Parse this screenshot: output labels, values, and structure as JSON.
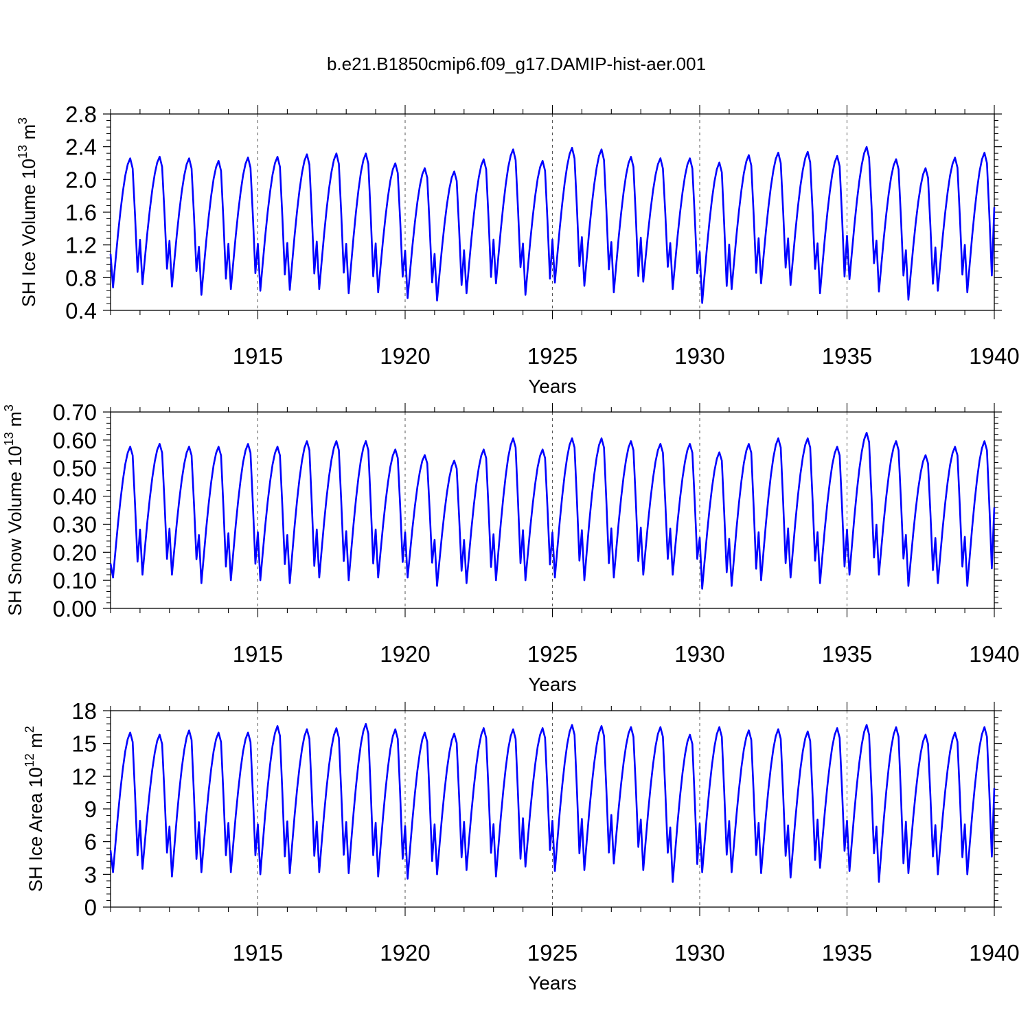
{
  "title": "b.e21.B1850cmip6.f09_g17.DAMIP-hist-aer.001",
  "colors": {
    "line": "#0000ff",
    "axis": "#000000",
    "grid": "#555555"
  },
  "chart_data": [
    {
      "type": "line",
      "panel": "top",
      "title": "b.e21.B1850cmip6.f09_g17.DAMIP-hist-aer.001",
      "xlabel": "Years",
      "ylabel": "SH Ice Volume 10",
      "ylabel_sup1": "13",
      "ylabel_mid": " m",
      "ylabel_sup2": "3",
      "xlim": [
        1910,
        1940
      ],
      "ylim": [
        0.4,
        2.8
      ],
      "yticks": [
        0.4,
        0.8,
        1.2,
        1.6,
        2.0,
        2.4,
        2.8
      ],
      "ytick_labels": [
        "0.4",
        "0.8",
        "1.2",
        "1.6",
        "2.0",
        "2.4",
        "2.8"
      ],
      "xticks": [
        1915,
        1920,
        1925,
        1930,
        1935,
        1940
      ],
      "xtick_labels": [
        "1915",
        "1920",
        "1925",
        "1930",
        "1935",
        "1940"
      ],
      "vgrid_years": [
        1915,
        1920,
        1925,
        1930,
        1935
      ],
      "series_start_year": 1910.0,
      "maxima": [
        2.27,
        2.29,
        2.27,
        2.24,
        2.28,
        2.29,
        2.32,
        2.33,
        2.33,
        2.21,
        2.15,
        2.11,
        2.26,
        2.38,
        2.24,
        2.4,
        2.38,
        2.29,
        2.27,
        2.27,
        2.22,
        2.31,
        2.34,
        2.35,
        2.3,
        2.41,
        2.26,
        2.15,
        2.28,
        2.34
      ],
      "minima": [
        0.68,
        0.72,
        0.69,
        0.59,
        0.66,
        0.64,
        0.65,
        0.66,
        0.61,
        0.62,
        0.55,
        0.52,
        0.61,
        0.73,
        0.59,
        0.74,
        0.7,
        0.62,
        0.75,
        0.66,
        0.49,
        0.66,
        0.73,
        0.71,
        0.61,
        0.78,
        0.63,
        0.53,
        0.64,
        0.62
      ],
      "start_value": 1.09,
      "end_value": 1.66
    },
    {
      "type": "line",
      "panel": "middle",
      "xlabel": "Years",
      "ylabel": "SH Snow Volume 10",
      "ylabel_sup1": "13",
      "ylabel_mid": " m",
      "ylabel_sup2": "3",
      "xlim": [
        1910,
        1940
      ],
      "ylim": [
        0.0,
        0.7
      ],
      "yticks": [
        0.0,
        0.1,
        0.2,
        0.3,
        0.4,
        0.5,
        0.6,
        0.7
      ],
      "ytick_labels": [
        "0.00",
        "0.10",
        "0.20",
        "0.30",
        "0.40",
        "0.50",
        "0.60",
        "0.70"
      ],
      "xticks": [
        1915,
        1920,
        1925,
        1930,
        1935,
        1940
      ],
      "xtick_labels": [
        "1915",
        "1920",
        "1925",
        "1930",
        "1935",
        "1940"
      ],
      "vgrid_years": [
        1915,
        1920,
        1925,
        1930,
        1935
      ],
      "series_start_year": 1910.0,
      "maxima": [
        0.58,
        0.59,
        0.58,
        0.58,
        0.59,
        0.58,
        0.6,
        0.6,
        0.6,
        0.57,
        0.55,
        0.53,
        0.57,
        0.61,
        0.57,
        0.61,
        0.61,
        0.6,
        0.59,
        0.59,
        0.56,
        0.59,
        0.61,
        0.61,
        0.58,
        0.63,
        0.6,
        0.55,
        0.58,
        0.6
      ],
      "minima": [
        0.11,
        0.12,
        0.12,
        0.09,
        0.1,
        0.1,
        0.09,
        0.11,
        0.1,
        0.11,
        0.11,
        0.08,
        0.09,
        0.1,
        0.1,
        0.11,
        0.1,
        0.11,
        0.12,
        0.12,
        0.07,
        0.08,
        0.1,
        0.11,
        0.09,
        0.12,
        0.12,
        0.08,
        0.09,
        0.08
      ],
      "start_value": 0.16,
      "end_value": 0.36
    },
    {
      "type": "line",
      "panel": "bottom",
      "xlabel": "Years",
      "ylabel": "SH Ice Area 10",
      "ylabel_sup1": "12",
      "ylabel_mid": " m",
      "ylabel_sup2": "2",
      "xlim": [
        1910,
        1940
      ],
      "ylim": [
        0,
        18
      ],
      "yticks": [
        0,
        3,
        6,
        9,
        12,
        15,
        18
      ],
      "ytick_labels": [
        "0",
        "3",
        "6",
        "9",
        "12",
        "15",
        "18"
      ],
      "xticks": [
        1915,
        1920,
        1925,
        1930,
        1935,
        1940
      ],
      "xtick_labels": [
        "1915",
        "1920",
        "1925",
        "1930",
        "1935",
        "1940"
      ],
      "vgrid_years": [
        1915,
        1920,
        1925,
        1930,
        1935
      ],
      "series_start_year": 1910.0,
      "maxima": [
        16.1,
        15.9,
        16.3,
        16.1,
        16.1,
        16.7,
        16.4,
        16.5,
        16.9,
        16.4,
        16.1,
        16.0,
        16.5,
        16.4,
        16.5,
        16.8,
        16.7,
        16.6,
        16.6,
        15.9,
        16.6,
        16.3,
        16.4,
        16.2,
        16.5,
        16.8,
        16.6,
        15.9,
        16.1,
        16.6
      ],
      "minima": [
        3.2,
        3.5,
        2.8,
        3.2,
        3.2,
        3.0,
        3.1,
        3.2,
        3.1,
        2.8,
        2.6,
        3.0,
        3.4,
        2.8,
        3.7,
        3.3,
        3.4,
        4.0,
        3.4,
        2.3,
        3.2,
        3.2,
        3.1,
        2.7,
        3.6,
        3.3,
        2.3,
        3.1,
        3.0,
        3.0
      ],
      "start_value": 5.2,
      "end_value": 10.9
    }
  ]
}
